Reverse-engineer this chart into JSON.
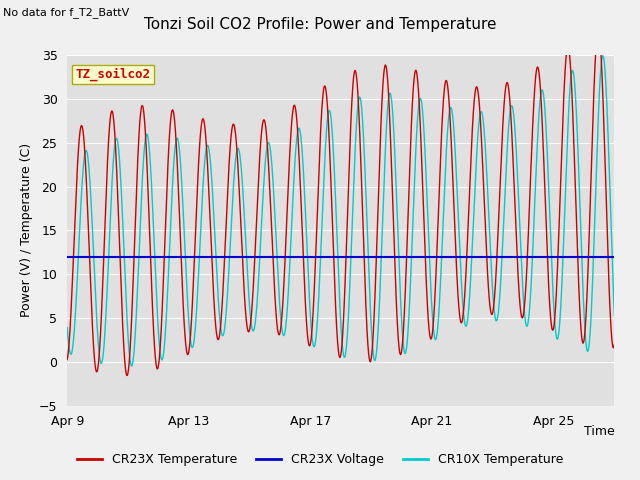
{
  "title": "Tonzi Soil CO2 Profile: Power and Temperature",
  "subtitle": "No data for f_T2_BattV",
  "ylabel": "Power (V) / Temperature (C)",
  "xlabel": "Time",
  "ylim": [
    -5,
    35
  ],
  "yticks": [
    -5,
    0,
    5,
    10,
    15,
    20,
    25,
    30,
    35
  ],
  "xtick_labels": [
    "Apr 9",
    "Apr 13",
    "Apr 17",
    "Apr 21",
    "Apr 25"
  ],
  "xtick_positions": [
    0,
    4,
    8,
    12,
    16
  ],
  "xlim": [
    0,
    18
  ],
  "legend_label": "TZ_soilco2",
  "voltage_line": 12.0,
  "fig_bg_color": "#f0f0f0",
  "plot_bg_color": "#e0e0e0",
  "cr23x_temp_color": "#cc0000",
  "cr23x_volt_color": "#0000cc",
  "cr10x_temp_color": "#00cccc",
  "title_fontsize": 11,
  "label_fontsize": 9,
  "tick_fontsize": 9,
  "legend_fontsize": 9
}
